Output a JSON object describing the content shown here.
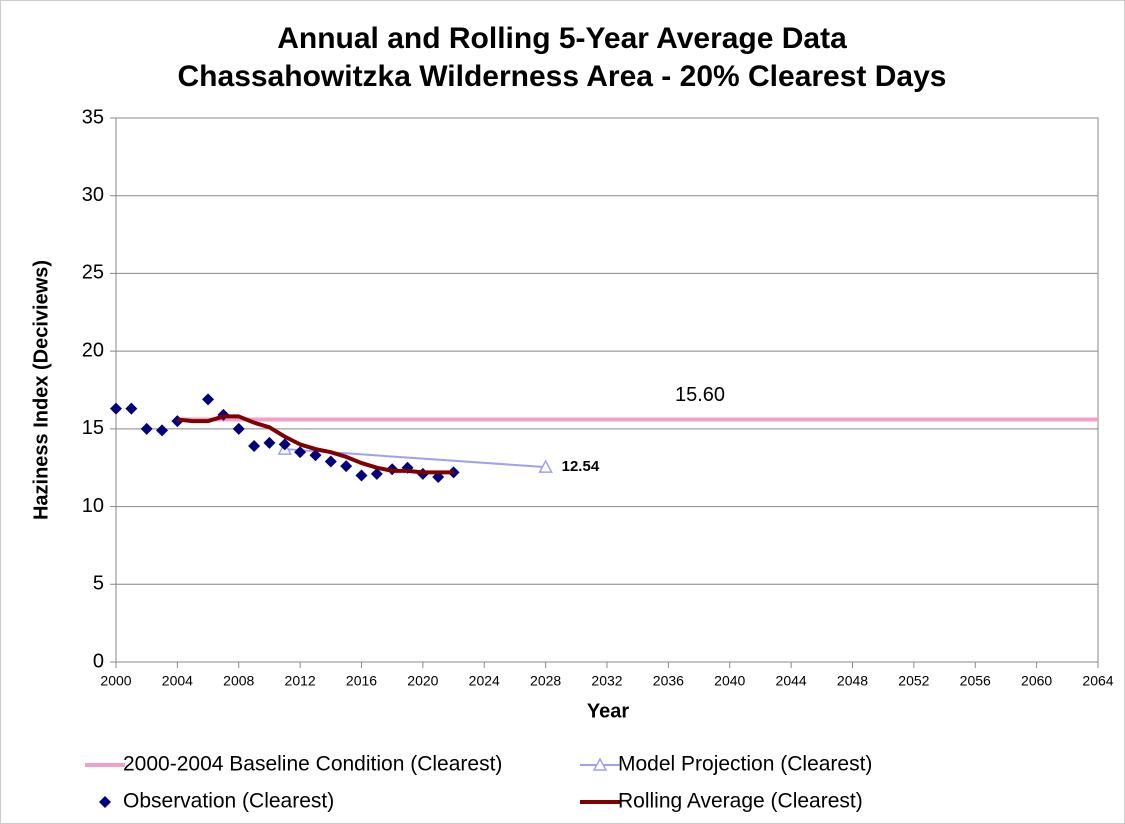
{
  "chart_data": {
    "type": "line",
    "title": "Annual and Rolling 5-Year Average Data",
    "subtitle": "Chassahowitzka Wilderness Area - 20% Clearest Days",
    "x_label": "Year",
    "y_label": "Haziness Index (Deciviews)",
    "xlim": [
      2000,
      2064
    ],
    "xticks": [
      2000,
      2004,
      2008,
      2012,
      2016,
      2020,
      2024,
      2028,
      2032,
      2036,
      2040,
      2044,
      2048,
      2052,
      2056,
      2060,
      2064
    ],
    "ylim": [
      0,
      35
    ],
    "yticks": [
      0,
      5,
      10,
      15,
      20,
      25,
      30,
      35
    ],
    "grid": true,
    "series": [
      {
        "name": "2000-2004 Baseline Condition (Clearest)",
        "color": "#f59fc8",
        "marker": "none",
        "x": [
          2004,
          2064
        ],
        "values": [
          15.6,
          15.6
        ],
        "value_labels": [
          null,
          "15.60"
        ]
      },
      {
        "name": "Model Projection (Clearest)",
        "color": "#a0a0f0",
        "marker": "triangle",
        "x": [
          2011,
          2028
        ],
        "values": [
          13.7,
          12.54
        ],
        "value_labels": [
          null,
          "12.54"
        ]
      },
      {
        "name": "Observation (Clearest)",
        "color": "#00007f",
        "marker": "diamond",
        "line": false,
        "x": [
          2000,
          2001,
          2002,
          2003,
          2004,
          2005,
          2006,
          2007,
          2008,
          2009,
          2010,
          2011,
          2012,
          2013,
          2014,
          2015,
          2016,
          2017,
          2018,
          2019,
          2020,
          2021,
          2022
        ],
        "values": [
          16.3,
          16.3,
          15.0,
          14.9,
          15.5,
          null,
          16.9,
          15.9,
          15.0,
          13.9,
          14.1,
          14.0,
          13.5,
          13.3,
          12.9,
          12.6,
          12.0,
          12.1,
          12.4,
          12.5,
          12.1,
          11.9,
          12.2
        ]
      },
      {
        "name": "Rolling Average (Clearest)",
        "color": "#800000",
        "marker": "none",
        "x": [
          2004,
          2005,
          2006,
          2007,
          2008,
          2009,
          2010,
          2011,
          2012,
          2013,
          2014,
          2015,
          2016,
          2017,
          2018,
          2019,
          2020,
          2021,
          2022
        ],
        "values": [
          15.6,
          15.5,
          15.5,
          15.8,
          15.8,
          15.4,
          15.1,
          14.5,
          14.0,
          13.7,
          13.5,
          13.2,
          12.8,
          12.5,
          12.3,
          12.3,
          12.2,
          12.2,
          12.2
        ]
      }
    ]
  }
}
